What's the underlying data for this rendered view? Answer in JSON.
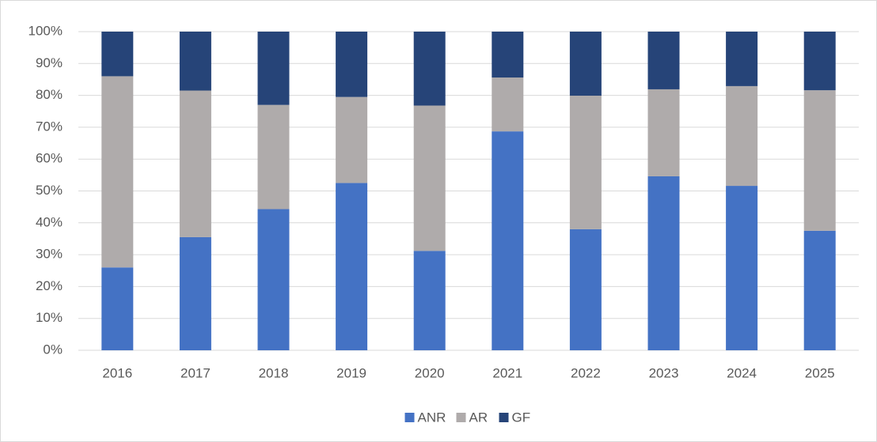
{
  "chart_data": {
    "type": "stacked_bar",
    "categories": [
      "2016",
      "2017",
      "2018",
      "2019",
      "2020",
      "2021",
      "2022",
      "2023",
      "2024",
      "2025"
    ],
    "series": [
      {
        "name": "ANR",
        "color": "#4472c4",
        "values": [
          26,
          35.5,
          44.3,
          52.5,
          31.2,
          68.7,
          38,
          54.6,
          51.6,
          37.5
        ]
      },
      {
        "name": "AR",
        "color": "#afabab",
        "values": [
          60,
          46,
          32.7,
          27,
          45.6,
          16.9,
          41.9,
          27.3,
          31.3,
          44.1
        ]
      },
      {
        "name": "GF",
        "color": "#264478",
        "values": [
          14,
          18.5,
          23,
          20.5,
          23.2,
          14.4,
          20.1,
          18.1,
          17.1,
          18.4
        ]
      }
    ],
    "ylim": [
      0,
      100
    ],
    "yticks": [
      {
        "value": 0,
        "label": "0%"
      },
      {
        "value": 10,
        "label": "10%"
      },
      {
        "value": 20,
        "label": "20%"
      },
      {
        "value": 30,
        "label": "30%"
      },
      {
        "value": 40,
        "label": "40%"
      },
      {
        "value": 50,
        "label": "50%"
      },
      {
        "value": 60,
        "label": "60%"
      },
      {
        "value": 70,
        "label": "70%"
      },
      {
        "value": 80,
        "label": "80%"
      },
      {
        "value": 90,
        "label": "90%"
      },
      {
        "value": 100,
        "label": "100%"
      }
    ],
    "grid": true,
    "legend": "bottom"
  }
}
